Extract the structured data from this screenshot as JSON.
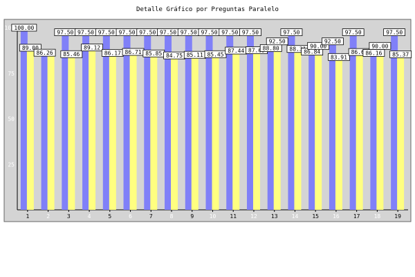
{
  "chart_data": {
    "type": "bar",
    "title": "Detalle Gráfico por Preguntas Paralelo",
    "xlabel": "",
    "ylabel": "",
    "categories": [
      "1",
      "2",
      "3",
      "4",
      "5",
      "6",
      "7",
      "8",
      "9",
      "10",
      "11",
      "12",
      "13",
      "14",
      "15",
      "16",
      "17",
      "18",
      "19"
    ],
    "ylim": [
      0,
      100
    ],
    "yticks": [
      "25",
      "50",
      "75",
      "100"
    ],
    "grid": false,
    "legend": "none",
    "series": [
      {
        "values": [
          100.0,
          86.26,
          97.5,
          97.5,
          97.5,
          97.5,
          97.5,
          97.5,
          97.5,
          97.5,
          97.5,
          97.5,
          88.8,
          97.5,
          86.84,
          92.5,
          97.5,
          86.16,
          97.5
        ],
        "labels": [
          "100.00",
          "86.26",
          "97.50",
          "97.50",
          "97.50",
          "97.50",
          "97.50",
          "97.50",
          "97.50",
          "97.50",
          "97.50",
          "97.50",
          "88.80",
          "97.50",
          "86.84",
          "92.50",
          "97.50",
          "86.16",
          "97.50"
        ]
      },
      {
        "values": [
          89.0,
          86.26,
          85.46,
          89.12,
          86.17,
          86.71,
          85.85,
          84.75,
          85.11,
          85.45,
          87.44,
          87.65,
          92.5,
          88.31,
          90.0,
          83.91,
          86.64,
          90.0,
          85.37
        ],
        "labels": [
          "89.00",
          "",
          "85.46",
          "89.12",
          "86.17",
          "86.71",
          "85.85",
          "84.75",
          "85.11",
          "85.45",
          "87.44",
          "87.65",
          "92.50",
          "88.31",
          "90.00",
          "83.91",
          "86.64",
          "90.00",
          "85.37"
        ]
      }
    ],
    "colors": {
      "plot_background": "#d4d4d4",
      "series1": "#8080f8",
      "series2": "#ffff80",
      "odd_tick_label": "#000000",
      "even_tick_label": "#ffffff"
    }
  }
}
